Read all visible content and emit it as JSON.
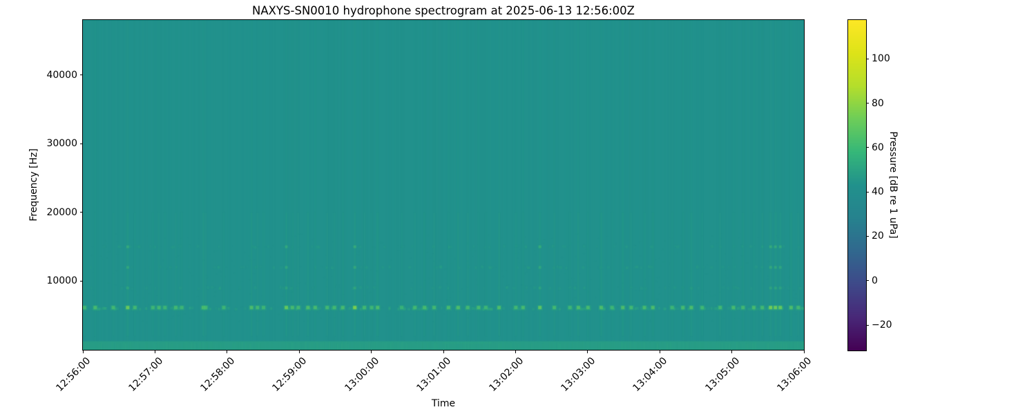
{
  "chart_data": {
    "type": "heatmap",
    "subtype": "spectrogram",
    "title": "NAXYS-SN0010 hydrophone spectrogram at 2025-06-13 12:56:00Z",
    "xlabel": "Time",
    "ylabel": "Frequency [Hz]",
    "x_tick_labels": [
      "12:56:00",
      "12:57:00",
      "12:58:00",
      "12:59:00",
      "13:00:00",
      "13:01:00",
      "13:02:00",
      "13:03:00",
      "13:04:00",
      "13:05:00",
      "13:06:00"
    ],
    "x_range_seconds": [
      0,
      600
    ],
    "y_tick_values": [
      10000,
      20000,
      30000,
      40000
    ],
    "y_tick_labels": [
      "10000",
      "20000",
      "30000",
      "40000"
    ],
    "y_range_hz": [
      0,
      48000
    ],
    "grid": false,
    "colormap": "viridis",
    "background_level_db": 43,
    "background_color": "#21918c",
    "colorbar": {
      "label": "Pressure [dB re 1 uPa]",
      "tick_values": [
        100,
        80,
        60,
        40,
        20,
        0,
        -20
      ],
      "tick_labels": [
        "100",
        "80",
        "60",
        "40",
        "20",
        "0",
        "−20"
      ],
      "vmin": -31.5,
      "vmax": 117.5,
      "top_color": "#fde725",
      "bottom_color": "#440154"
    },
    "features": {
      "low_band": {
        "freq_hz": [
          0,
          1250
        ],
        "level_db": 49
      },
      "click_band_hz": [
        5500,
        6800
      ],
      "secondary_band_hz": [
        9000,
        16000
      ],
      "texture_band_hz": [
        4000,
        17000
      ]
    },
    "events": [
      {
        "t": 1,
        "i": 0.5
      },
      {
        "t": 10,
        "i": 0.55
      },
      {
        "t": 25,
        "i": 0.5
      },
      {
        "t": 37,
        "i": 0.85
      },
      {
        "t": 43,
        "i": 0.5
      },
      {
        "t": 58,
        "i": 0.45
      },
      {
        "t": 63,
        "i": 0.5
      },
      {
        "t": 68,
        "i": 0.45
      },
      {
        "t": 77,
        "i": 0.5
      },
      {
        "t": 82,
        "i": 0.45
      },
      {
        "t": 100,
        "i": 0.6
      },
      {
        "t": 102,
        "i": 0.5
      },
      {
        "t": 117,
        "i": 0.45
      },
      {
        "t": 140,
        "i": 0.6
      },
      {
        "t": 145,
        "i": 0.5
      },
      {
        "t": 150,
        "i": 0.45
      },
      {
        "t": 169,
        "i": 0.8
      },
      {
        "t": 174,
        "i": 0.55
      },
      {
        "t": 179,
        "i": 0.5
      },
      {
        "t": 187,
        "i": 0.6
      },
      {
        "t": 193,
        "i": 0.55
      },
      {
        "t": 203,
        "i": 0.5
      },
      {
        "t": 209,
        "i": 0.5
      },
      {
        "t": 216,
        "i": 0.55
      },
      {
        "t": 226,
        "i": 0.95
      },
      {
        "t": 234,
        "i": 0.5
      },
      {
        "t": 240,
        "i": 0.45
      },
      {
        "t": 245,
        "i": 0.6
      },
      {
        "t": 265,
        "i": 0.4
      },
      {
        "t": 276,
        "i": 0.5
      },
      {
        "t": 284,
        "i": 0.55
      },
      {
        "t": 292,
        "i": 0.5
      },
      {
        "t": 304,
        "i": 0.55
      },
      {
        "t": 312,
        "i": 0.6
      },
      {
        "t": 320,
        "i": 0.5
      },
      {
        "t": 329,
        "i": 0.55
      },
      {
        "t": 335,
        "i": 0.45
      },
      {
        "t": 346,
        "i": 0.6
      },
      {
        "t": 360,
        "i": 0.5
      },
      {
        "t": 366,
        "i": 0.55
      },
      {
        "t": 380,
        "i": 0.75
      },
      {
        "t": 392,
        "i": 0.5
      },
      {
        "t": 405,
        "i": 0.45
      },
      {
        "t": 412,
        "i": 0.6
      },
      {
        "t": 420,
        "i": 0.55
      },
      {
        "t": 431,
        "i": 0.6
      },
      {
        "t": 440,
        "i": 0.45
      },
      {
        "t": 449,
        "i": 0.6
      },
      {
        "t": 456,
        "i": 0.5
      },
      {
        "t": 467,
        "i": 0.55
      },
      {
        "t": 474,
        "i": 0.6
      },
      {
        "t": 490,
        "i": 0.45
      },
      {
        "t": 499,
        "i": 0.55
      },
      {
        "t": 506,
        "i": 0.6
      },
      {
        "t": 515,
        "i": 0.45
      },
      {
        "t": 530,
        "i": 0.5
      },
      {
        "t": 541,
        "i": 0.55
      },
      {
        "t": 549,
        "i": 0.5
      },
      {
        "t": 558,
        "i": 0.55
      },
      {
        "t": 565,
        "i": 0.5
      },
      {
        "t": 572,
        "i": 0.9
      },
      {
        "t": 576,
        "i": 0.85
      },
      {
        "t": 580,
        "i": 0.8
      },
      {
        "t": 589,
        "i": 0.6
      },
      {
        "t": 595,
        "i": 0.5
      }
    ]
  }
}
